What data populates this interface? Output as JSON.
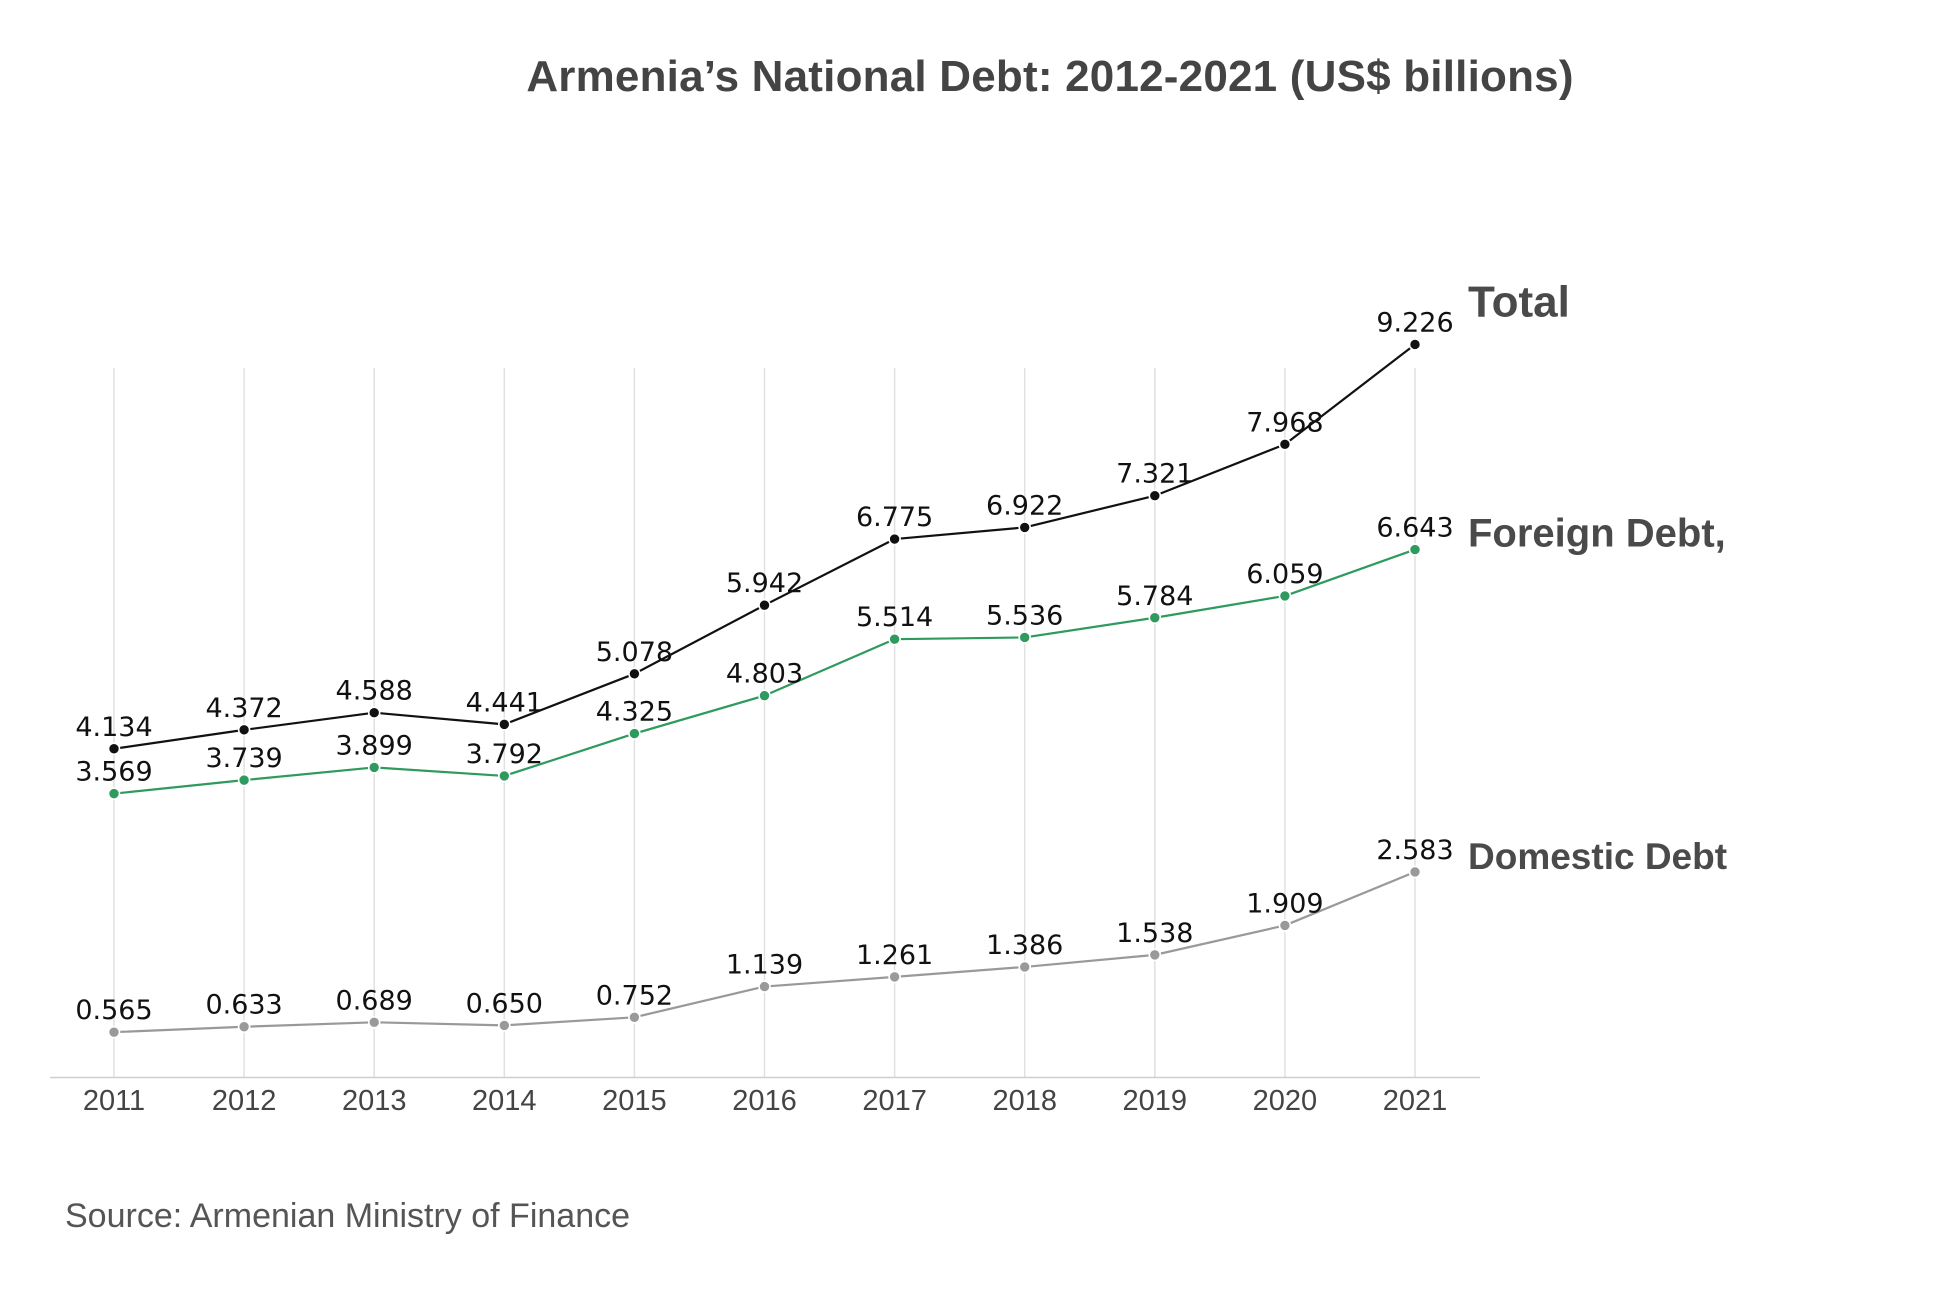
{
  "title": "Armenia’s National Debt: 2012-2021 (US$ billions)",
  "source": "Source: Armenian Ministry of Finance",
  "chart_data": {
    "type": "line",
    "title": "Armenia’s National Debt: 2012-2021 (US$ billions)",
    "xlabel": "",
    "ylabel": "",
    "x": [
      "2011",
      "2012",
      "2013",
      "2014",
      "2015",
      "2016",
      "2017",
      "2018",
      "2019",
      "2020",
      "2021"
    ],
    "ylim": [
      0,
      10
    ],
    "grid": "vertical",
    "legend": "inline labels at right end of each line",
    "series": [
      {
        "name": "Total",
        "color": "#111111",
        "values": [
          4.134,
          4.372,
          4.588,
          4.441,
          5.078,
          5.942,
          6.775,
          6.922,
          7.321,
          7.968,
          9.226
        ],
        "labels": [
          "4.134",
          "4.372",
          "4.588",
          "4.441",
          "5.078",
          "5.942",
          "6.775",
          "6.922",
          "7.321",
          "7.968",
          "9.226"
        ]
      },
      {
        "name": "Foreign Debt,",
        "color": "#2e9a5e",
        "values": [
          3.569,
          3.739,
          3.899,
          3.792,
          4.325,
          4.803,
          5.514,
          5.536,
          5.784,
          6.059,
          6.643
        ],
        "labels": [
          "3.569",
          "3.739",
          "3.899",
          "3.792",
          "4.325",
          "4.803",
          "5.514",
          "5.536",
          "5.784",
          "6.059",
          "6.643"
        ]
      },
      {
        "name": "Domestic Debt",
        "color": "#999999",
        "values": [
          0.565,
          0.633,
          0.689,
          0.65,
          0.752,
          1.139,
          1.261,
          1.386,
          1.538,
          1.909,
          2.583
        ],
        "labels": [
          "0.565",
          "0.633",
          "0.689",
          "0.650",
          "0.752",
          "1.139",
          "1.261",
          "1.386",
          "1.538",
          "1.909",
          "2.583"
        ]
      }
    ]
  }
}
